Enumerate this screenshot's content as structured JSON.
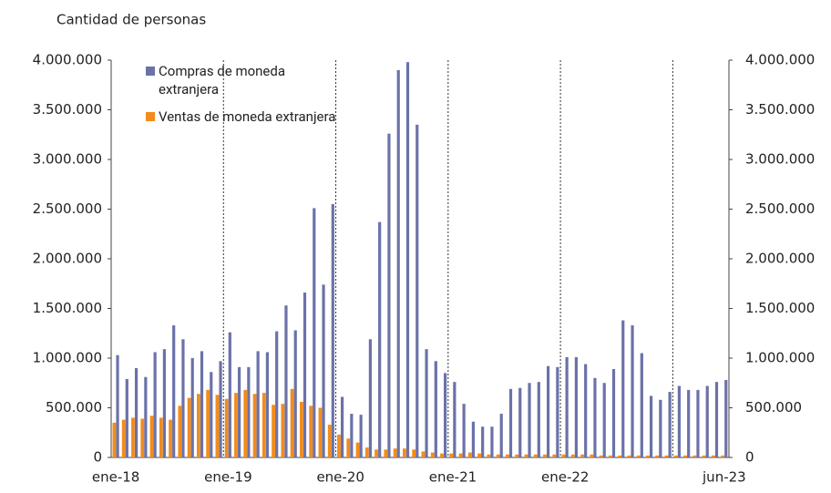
{
  "chart_data": {
    "type": "bar",
    "y_label": "Cantidad de personas",
    "categories": [
      "ene-18",
      null,
      null,
      null,
      null,
      null,
      null,
      null,
      null,
      null,
      null,
      null,
      "ene-19",
      null,
      null,
      null,
      null,
      null,
      null,
      null,
      null,
      null,
      null,
      null,
      "ene-20",
      null,
      null,
      null,
      null,
      null,
      null,
      null,
      null,
      null,
      null,
      null,
      "ene-21",
      null,
      null,
      null,
      null,
      null,
      null,
      null,
      null,
      null,
      null,
      null,
      "ene-22",
      null,
      null,
      null,
      null,
      null,
      null,
      null,
      null,
      null,
      null,
      null,
      null,
      null,
      null,
      null,
      null,
      "jun-23"
    ],
    "series": [
      {
        "name": "Compras de moneda extranjera",
        "color": "#6b72a8",
        "values": [
          1030000,
          790000,
          900000,
          810000,
          1060000,
          1090000,
          1330000,
          1190000,
          1000000,
          1070000,
          860000,
          970000,
          1260000,
          910000,
          910000,
          1070000,
          1060000,
          1270000,
          1530000,
          1280000,
          1660000,
          2510000,
          1740000,
          2550000,
          610000,
          440000,
          430000,
          1190000,
          2370000,
          3260000,
          3900000,
          3980000,
          3350000,
          1090000,
          970000,
          850000,
          760000,
          540000,
          360000,
          310000,
          310000,
          440000,
          690000,
          700000,
          750000,
          760000,
          920000,
          910000,
          1010000,
          1010000,
          940000,
          800000,
          750000,
          890000,
          1380000,
          1330000,
          1050000,
          620000,
          580000,
          660000,
          720000,
          680000,
          680000,
          720000,
          760000,
          780000
        ]
      },
      {
        "name": "Ventas de moneda extranjera",
        "color": "#f28c1c",
        "values": [
          350000,
          380000,
          400000,
          390000,
          420000,
          400000,
          380000,
          520000,
          600000,
          640000,
          680000,
          630000,
          590000,
          650000,
          680000,
          640000,
          650000,
          530000,
          540000,
          690000,
          560000,
          520000,
          500000,
          330000,
          230000,
          190000,
          150000,
          100000,
          80000,
          80000,
          90000,
          90000,
          80000,
          60000,
          50000,
          40000,
          40000,
          40000,
          50000,
          40000,
          30000,
          30000,
          30000,
          30000,
          30000,
          30000,
          30000,
          30000,
          30000,
          30000,
          30000,
          30000,
          20000,
          20000,
          20000,
          20000,
          20000,
          20000,
          20000,
          20000,
          20000,
          20000,
          20000,
          20000,
          20000,
          20000
        ]
      }
    ],
    "ylim": [
      0,
      4000000
    ],
    "yticks": [
      0,
      {
        "value": 500000,
        "label": "500.000"
      },
      {
        "value": 1000000,
        "label": "1.000.000"
      },
      {
        "value": 1500000,
        "label": "1.500.000"
      },
      {
        "value": 2000000,
        "label": "2.000.000"
      },
      {
        "value": 2500000,
        "label": "2.500.000"
      },
      {
        "value": 3000000,
        "label": "3.000.000"
      },
      {
        "value": 3500000,
        "label": "3.500.000"
      },
      {
        "value": 4000000,
        "label": "4.000.000"
      }
    ],
    "y2lim": [
      0,
      4000000
    ],
    "y2ticks": [
      0,
      {
        "value": 500000,
        "label": "500.000"
      },
      {
        "value": 1000000,
        "label": "1.000.000"
      },
      {
        "value": 1500000,
        "label": "1.500.000"
      },
      {
        "value": 2000000,
        "label": "2.000.000"
      },
      {
        "value": 2500000,
        "label": "2.500.000"
      },
      {
        "value": 3000000,
        "label": "3.000.000"
      },
      {
        "value": 3500000,
        "label": "3.500.000"
      },
      {
        "value": 4000000,
        "label": "4.000.000"
      }
    ],
    "grid": false
  }
}
